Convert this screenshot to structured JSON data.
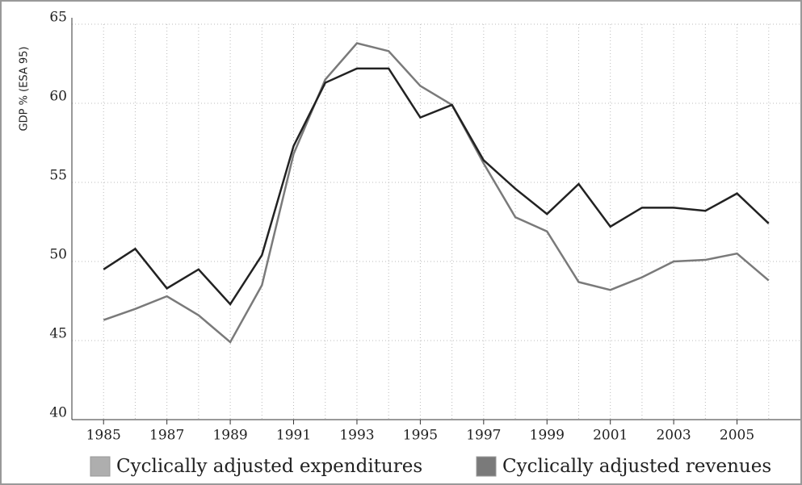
{
  "chart_data": {
    "type": "line",
    "y_label": "GDP % (ESA 95)",
    "x": [
      1985,
      1986,
      1987,
      1988,
      1989,
      1990,
      1991,
      1992,
      1993,
      1994,
      1995,
      1996,
      1997,
      1998,
      1999,
      2000,
      2001,
      2002,
      2003,
      2004,
      2005,
      2006
    ],
    "series": [
      {
        "name": "Cyclically adjusted expenditures",
        "color": "#7a7a7a",
        "values": [
          46.3,
          47.0,
          47.8,
          46.6,
          44.9,
          48.5,
          56.8,
          61.5,
          63.8,
          63.3,
          61.1,
          59.9,
          56.2,
          52.8,
          51.9,
          48.7,
          48.2,
          49.0,
          50.0,
          50.1,
          50.5,
          48.8
        ]
      },
      {
        "name": "Cyclically adjusted revenues",
        "color": "#222222",
        "values": [
          49.5,
          50.8,
          48.3,
          49.5,
          47.3,
          50.4,
          57.3,
          61.3,
          62.2,
          62.2,
          59.1,
          59.9,
          56.4,
          54.6,
          53.0,
          54.9,
          52.2,
          53.4,
          53.4,
          53.2,
          54.3,
          52.4
        ]
      }
    ],
    "xlim": [
      1984,
      2007
    ],
    "xticks": [
      1985,
      1987,
      1989,
      1991,
      1993,
      1995,
      1997,
      1999,
      2001,
      2003,
      2005
    ],
    "ylim": [
      40,
      65
    ],
    "yticks": [
      40,
      45,
      50,
      55,
      60,
      65
    ],
    "grid": true
  }
}
